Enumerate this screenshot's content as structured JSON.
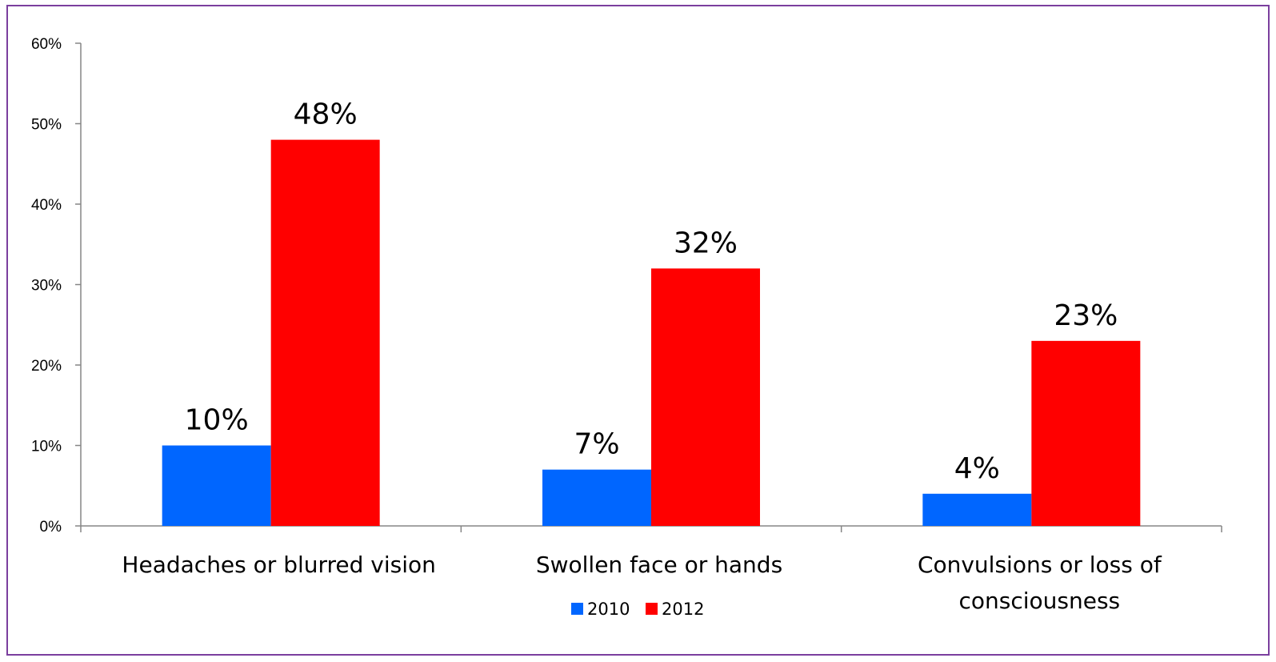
{
  "colors": {
    "frame": "#7b3f9e",
    "axis": "#868686",
    "series_2010": "#0066ff",
    "series_2012": "#ff0000"
  },
  "chart_data": {
    "type": "bar",
    "categories": [
      [
        "Headaches or blurred vision"
      ],
      [
        "Swollen face or hands"
      ],
      [
        "Convulsions or loss of",
        "consciousness"
      ]
    ],
    "series": [
      {
        "name": "2010",
        "values": [
          10,
          7,
          4
        ],
        "labels": [
          "10%",
          "7%",
          "4%"
        ],
        "color": "#0066ff"
      },
      {
        "name": "2012",
        "values": [
          48,
          32,
          23
        ],
        "labels": [
          "48%",
          "32%",
          "23%"
        ],
        "color": "#ff0000"
      }
    ],
    "y_ticks": [
      0,
      10,
      20,
      30,
      40,
      50,
      60
    ],
    "y_tick_labels": [
      "0%",
      "10%",
      "20%",
      "30%",
      "40%",
      "50%",
      "60%"
    ],
    "ylim": [
      0,
      60
    ],
    "grid": false,
    "legend_position": "bottom-center",
    "title": "",
    "xlabel": "",
    "ylabel": ""
  }
}
